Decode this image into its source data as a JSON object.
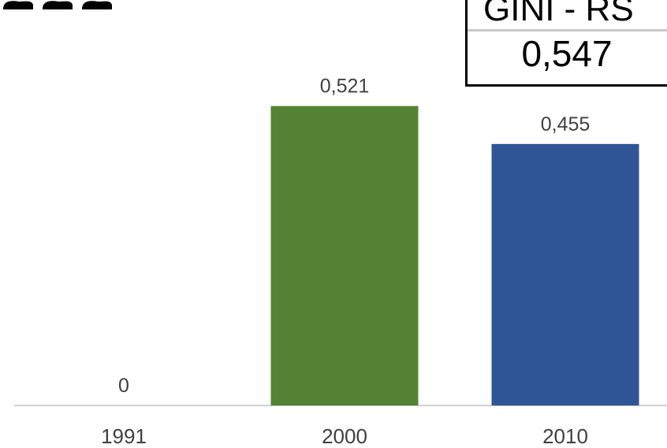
{
  "gini_box": {
    "title": "GINI - RS",
    "value": "0,547"
  },
  "chart_data": {
    "type": "bar",
    "categories": [
      "1991",
      "2000",
      "2010"
    ],
    "values": [
      0,
      0.521,
      0.455
    ],
    "value_labels": [
      "0",
      "0,521",
      "0,455"
    ],
    "colors": [
      "#548235",
      "#548235",
      "#2f5597"
    ],
    "title": "",
    "xlabel": "",
    "ylabel": "",
    "ylim": [
      0,
      0.6
    ],
    "grid": false,
    "legend": "none"
  }
}
